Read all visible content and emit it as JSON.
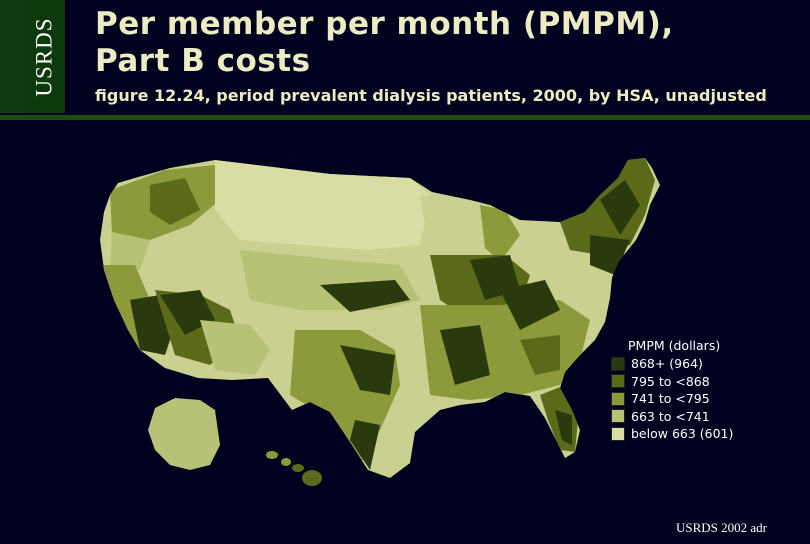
{
  "sidebar": {
    "label": "USRDS"
  },
  "header": {
    "title_line1": "Per member per month (PMPM),",
    "title_line2": "Part B costs",
    "subtitle": "figure 12.24, period prevalent dialysis patients, 2000, by HSA, unadjusted"
  },
  "legend": {
    "title": "PMPM (dollars)",
    "items": [
      {
        "label": "868+ (964)",
        "color": "#2a3a0c"
      },
      {
        "label": "795 to <868",
        "color": "#5b6a18"
      },
      {
        "label": "741 to <795",
        "color": "#8d9a3c"
      },
      {
        "label": "663 to <741",
        "color": "#b7c277"
      },
      {
        "label": "below 663 (601)",
        "color": "#d8dda4"
      }
    ]
  },
  "footer": {
    "credit": "USRDS 2002 adr"
  }
}
